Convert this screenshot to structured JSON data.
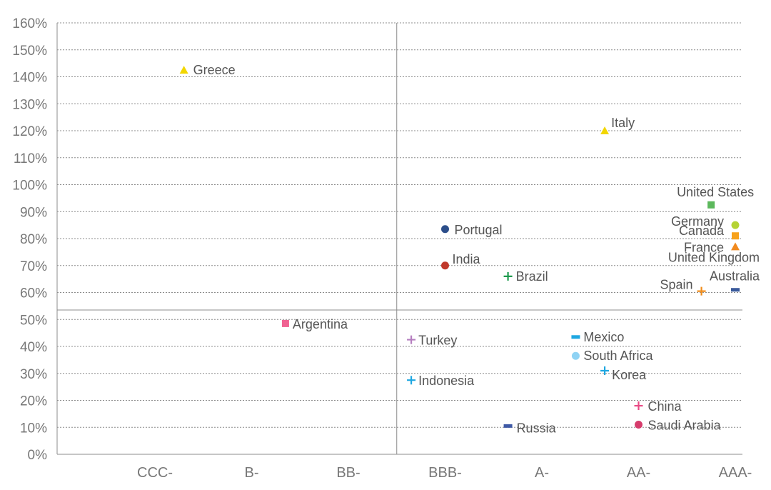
{
  "chart_data": {
    "type": "scatter",
    "title": "",
    "xlabel": "",
    "ylabel": "",
    "x_categories": [
      "CCC-",
      "B-",
      "BB-",
      "BBB-",
      "A-",
      "AA-",
      "AAA-"
    ],
    "y_ticks": [
      "0%",
      "10%",
      "20%",
      "30%",
      "40%",
      "50%",
      "60%",
      "70%",
      "80%",
      "90%",
      "100%",
      "110%",
      "120%",
      "130%",
      "140%",
      "150%",
      "160%"
    ],
    "ylim": [
      0,
      160
    ],
    "grid": true,
    "reference_lines": {
      "x_category_position": 2.5,
      "y_value": 53.5
    },
    "points": [
      {
        "label": "Greece",
        "x": 0.3,
        "y": 142.5,
        "marker": "triangle",
        "color": "#f2d600"
      },
      {
        "label": "Italy",
        "x": 4.65,
        "y": 120,
        "marker": "triangle",
        "color": "#f2d600"
      },
      {
        "label": "United States",
        "x": 5.75,
        "y": 92.5,
        "marker": "square",
        "color": "#5cb85c"
      },
      {
        "label": "Germany",
        "x": 6.0,
        "y": 85,
        "marker": "circle",
        "color": "#b5d334"
      },
      {
        "label": "Canada",
        "x": 6.0,
        "y": 81,
        "marker": "square",
        "color": "#f7a21c"
      },
      {
        "label": "France",
        "x": 6.0,
        "y": 77,
        "marker": "triangle",
        "color": "#f18a1f"
      },
      {
        "label": "United Kingdom",
        "x": 6.0,
        "y": 73,
        "marker": "none",
        "color": "#555555"
      },
      {
        "label": "Australia",
        "x": 6.0,
        "y": 61,
        "marker": "dash",
        "color": "#3a5a9b"
      },
      {
        "label": "Spain",
        "x": 5.65,
        "y": 60.5,
        "marker": "plus",
        "color": "#f08c1a"
      },
      {
        "label": "Portugal",
        "x": 3.0,
        "y": 83.5,
        "marker": "circle",
        "color": "#2c4e8a"
      },
      {
        "label": "India",
        "x": 3.0,
        "y": 70,
        "marker": "circle",
        "color": "#c0392b"
      },
      {
        "label": "Brazil",
        "x": 3.65,
        "y": 66,
        "marker": "plus",
        "color": "#1e9a4e"
      },
      {
        "label": "Argentina",
        "x": 1.35,
        "y": 48.5,
        "marker": "square",
        "color": "#f06292"
      },
      {
        "label": "Turkey",
        "x": 2.65,
        "y": 42.5,
        "marker": "plus",
        "color": "#b57ebf"
      },
      {
        "label": "Indonesia",
        "x": 2.65,
        "y": 27.5,
        "marker": "plus",
        "color": "#1ea7e1"
      },
      {
        "label": "Mexico",
        "x": 4.35,
        "y": 43.5,
        "marker": "dash",
        "color": "#1ea7e1"
      },
      {
        "label": "South Africa",
        "x": 4.35,
        "y": 36.5,
        "marker": "circle",
        "color": "#8fd3f4"
      },
      {
        "label": "Korea",
        "x": 4.65,
        "y": 31,
        "marker": "plus",
        "color": "#1ea7e1"
      },
      {
        "label": "China",
        "x": 5.0,
        "y": 18,
        "marker": "plus",
        "color": "#e94b86"
      },
      {
        "label": "Saudi Arabia",
        "x": 5.0,
        "y": 11,
        "marker": "circle",
        "color": "#d63c6c"
      },
      {
        "label": "Russia",
        "x": 3.65,
        "y": 10.5,
        "marker": "dash",
        "color": "#3f5aa6"
      }
    ]
  }
}
